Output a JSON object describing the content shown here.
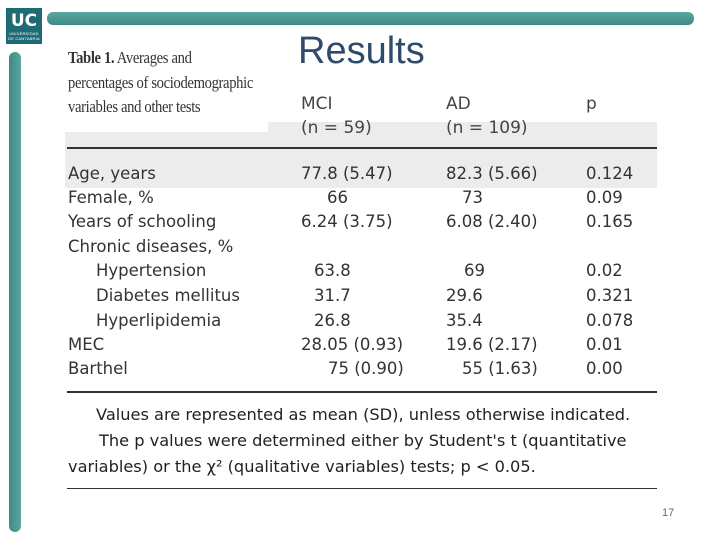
{
  "logo": {
    "mark": "UC",
    "subtitle": "UNIVERSIDAD DE CANTABRIA"
  },
  "slide_title": "Results",
  "table": {
    "caption_bold": "Table 1.",
    "caption_rest": [
      "Averages and",
      "percentages of sociodemographic",
      "variables and other tests"
    ],
    "headers": {
      "mci": "MCI",
      "mci_n": "(n = 59)",
      "ad": "AD",
      "ad_n": "(n = 109)",
      "p": "p"
    },
    "rows": [
      {
        "label": "Age, years",
        "mci": "77.8 (5.47)",
        "ad": "82.3 (5.66)",
        "p": "0.124"
      },
      {
        "label": "Female, %",
        "mci": "66",
        "ad": "73",
        "p": "0.09"
      },
      {
        "label": "Years of schooling",
        "mci": "6.24 (3.75)",
        "ad": "6.08 (2.40)",
        "p": "0.165"
      },
      {
        "label": "Chronic diseases, %",
        "mci": "",
        "ad": "",
        "p": ""
      },
      {
        "label": "Hypertension",
        "mci": "63.8",
        "ad": "69",
        "p": "0.02"
      },
      {
        "label": "Diabetes mellitus",
        "mci": "31.7",
        "ad": "29.6",
        "p": "0.321"
      },
      {
        "label": "Hyperlipidemia",
        "mci": "26.8",
        "ad": "35.4",
        "p": "0.078"
      },
      {
        "label": "MEC",
        "mci": "28.05 (0.93)",
        "ad": "19.6 (2.17)",
        "p": "0.01"
      },
      {
        "label": "Barthel",
        "mci": "75 (0.90)",
        "ad": "55 (1.63)",
        "p": "0.00"
      }
    ],
    "note": [
      "Values are represented as mean (SD), unless otherwise indicated.",
      "The p values were determined either by Student's t (quantitative",
      "variables) or the χ² (qualitative variables) tests; p < 0.05."
    ]
  },
  "page_number": "17"
}
